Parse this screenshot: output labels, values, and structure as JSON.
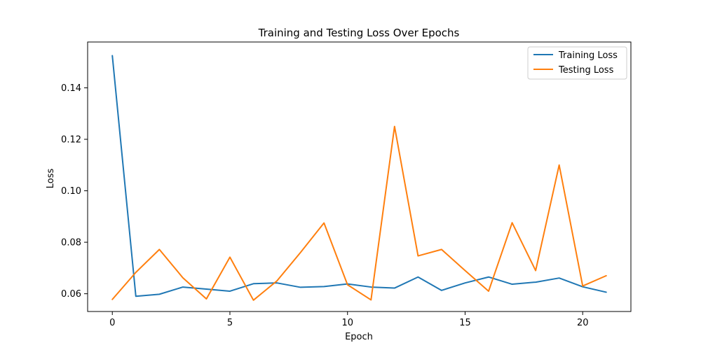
{
  "chart_data": {
    "type": "line",
    "title": "Training and Testing Loss Over Epochs",
    "xlabel": "Epoch",
    "ylabel": "Loss",
    "x": [
      0,
      1,
      2,
      3,
      4,
      5,
      6,
      7,
      8,
      9,
      10,
      11,
      12,
      13,
      14,
      15,
      16,
      17,
      18,
      19,
      20,
      21
    ],
    "xlim": [
      -1.05,
      22.05
    ],
    "ylim": [
      0.0531,
      0.1578
    ],
    "xticks": [
      0,
      5,
      10,
      15,
      20
    ],
    "yticks": [
      0.06,
      0.08,
      0.1,
      0.12,
      0.14
    ],
    "xtick_labels": [
      "0",
      "5",
      "10",
      "15",
      "20"
    ],
    "ytick_labels": [
      "0.06",
      "0.08",
      "0.10",
      "0.12",
      "0.14"
    ],
    "grid": false,
    "legend_position": "top-right",
    "series": [
      {
        "name": "Training Loss",
        "color": "#1f77b4",
        "values": [
          0.1525,
          0.059,
          0.0598,
          0.0626,
          0.0618,
          0.061,
          0.0639,
          0.0642,
          0.0625,
          0.0628,
          0.0638,
          0.0626,
          0.0622,
          0.0665,
          0.0613,
          0.0642,
          0.0665,
          0.0637,
          0.0645,
          0.0661,
          0.0627,
          0.0606
        ]
      },
      {
        "name": "Testing Loss",
        "color": "#ff7f0e",
        "values": [
          0.0578,
          0.0683,
          0.0772,
          0.0662,
          0.058,
          0.0742,
          0.0575,
          0.065,
          0.076,
          0.0875,
          0.0635,
          0.0576,
          0.125,
          0.0747,
          0.0772,
          0.069,
          0.061,
          0.0876,
          0.069,
          0.11,
          0.063,
          0.067
        ]
      }
    ]
  }
}
